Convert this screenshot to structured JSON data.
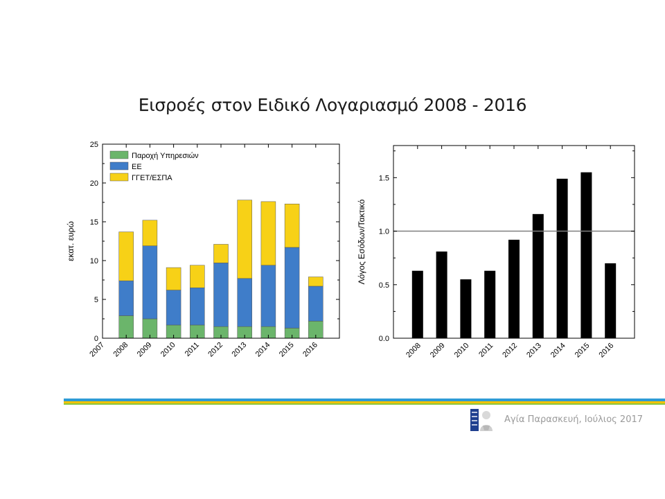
{
  "slide": {
    "title": "Εισροές στον Ειδικό Λογαριασμό 2008 - 2016",
    "footer_text": "Αγία Παρασκευή, Ιούλιος 2017",
    "colors": {
      "band_blue": "#2E9BD6",
      "band_yellow": "#F2C200",
      "band_green": "#8DC63F",
      "logo_blue": "#1F3F8F"
    }
  },
  "chart_data": [
    {
      "type": "bar",
      "stacked": true,
      "title": "",
      "ylabel": "εκατ. ευρώ",
      "xlabel": "",
      "ylim": [
        0,
        25
      ],
      "yticks": [
        0,
        5,
        10,
        15,
        20,
        25
      ],
      "xlim": [
        2007,
        2017
      ],
      "xtick_labels": [
        "2007",
        "2008",
        "2009",
        "2010",
        "2011",
        "2012",
        "2013",
        "2014",
        "2015",
        "2016"
      ],
      "categories": [
        "2008",
        "2009",
        "2010",
        "2011",
        "2012",
        "2013",
        "2014",
        "2015",
        "2016"
      ],
      "legend_position": "top-left",
      "series": [
        {
          "name": "Παροχή Υπηρεσιών",
          "color": "#6BB56B",
          "values": [
            2.9,
            2.5,
            1.7,
            1.7,
            1.5,
            1.5,
            1.5,
            1.3,
            2.2
          ]
        },
        {
          "name": "ΕΕ",
          "color": "#3F7DC9",
          "values": [
            4.5,
            9.4,
            4.5,
            4.8,
            8.2,
            6.2,
            7.9,
            10.4,
            4.5
          ]
        },
        {
          "name": "ΓΓΕΤ/ΕΣΠΑ",
          "color": "#F7D117",
          "values": [
            6.3,
            3.3,
            2.9,
            2.9,
            2.4,
            10.1,
            8.2,
            5.6,
            1.2
          ]
        }
      ]
    },
    {
      "type": "bar",
      "title": "",
      "ylabel": "Λόγος Εσόδων/Τακτικό",
      "xlabel": "",
      "ylim": [
        0,
        1.8
      ],
      "yticks": [
        0.0,
        0.5,
        1.0,
        1.5
      ],
      "ytick_labels": [
        "0.0",
        "0.5",
        "1.0",
        "1.5"
      ],
      "categories": [
        "2008",
        "2009",
        "2010",
        "2011",
        "2012",
        "2013",
        "2014",
        "2015",
        "2016"
      ],
      "values": [
        0.63,
        0.81,
        0.55,
        0.63,
        0.92,
        1.16,
        1.49,
        1.55,
        0.7
      ],
      "reference_line": 1.0,
      "bar_color": "#000000",
      "ref_line_color": "#7f7f7f"
    }
  ]
}
